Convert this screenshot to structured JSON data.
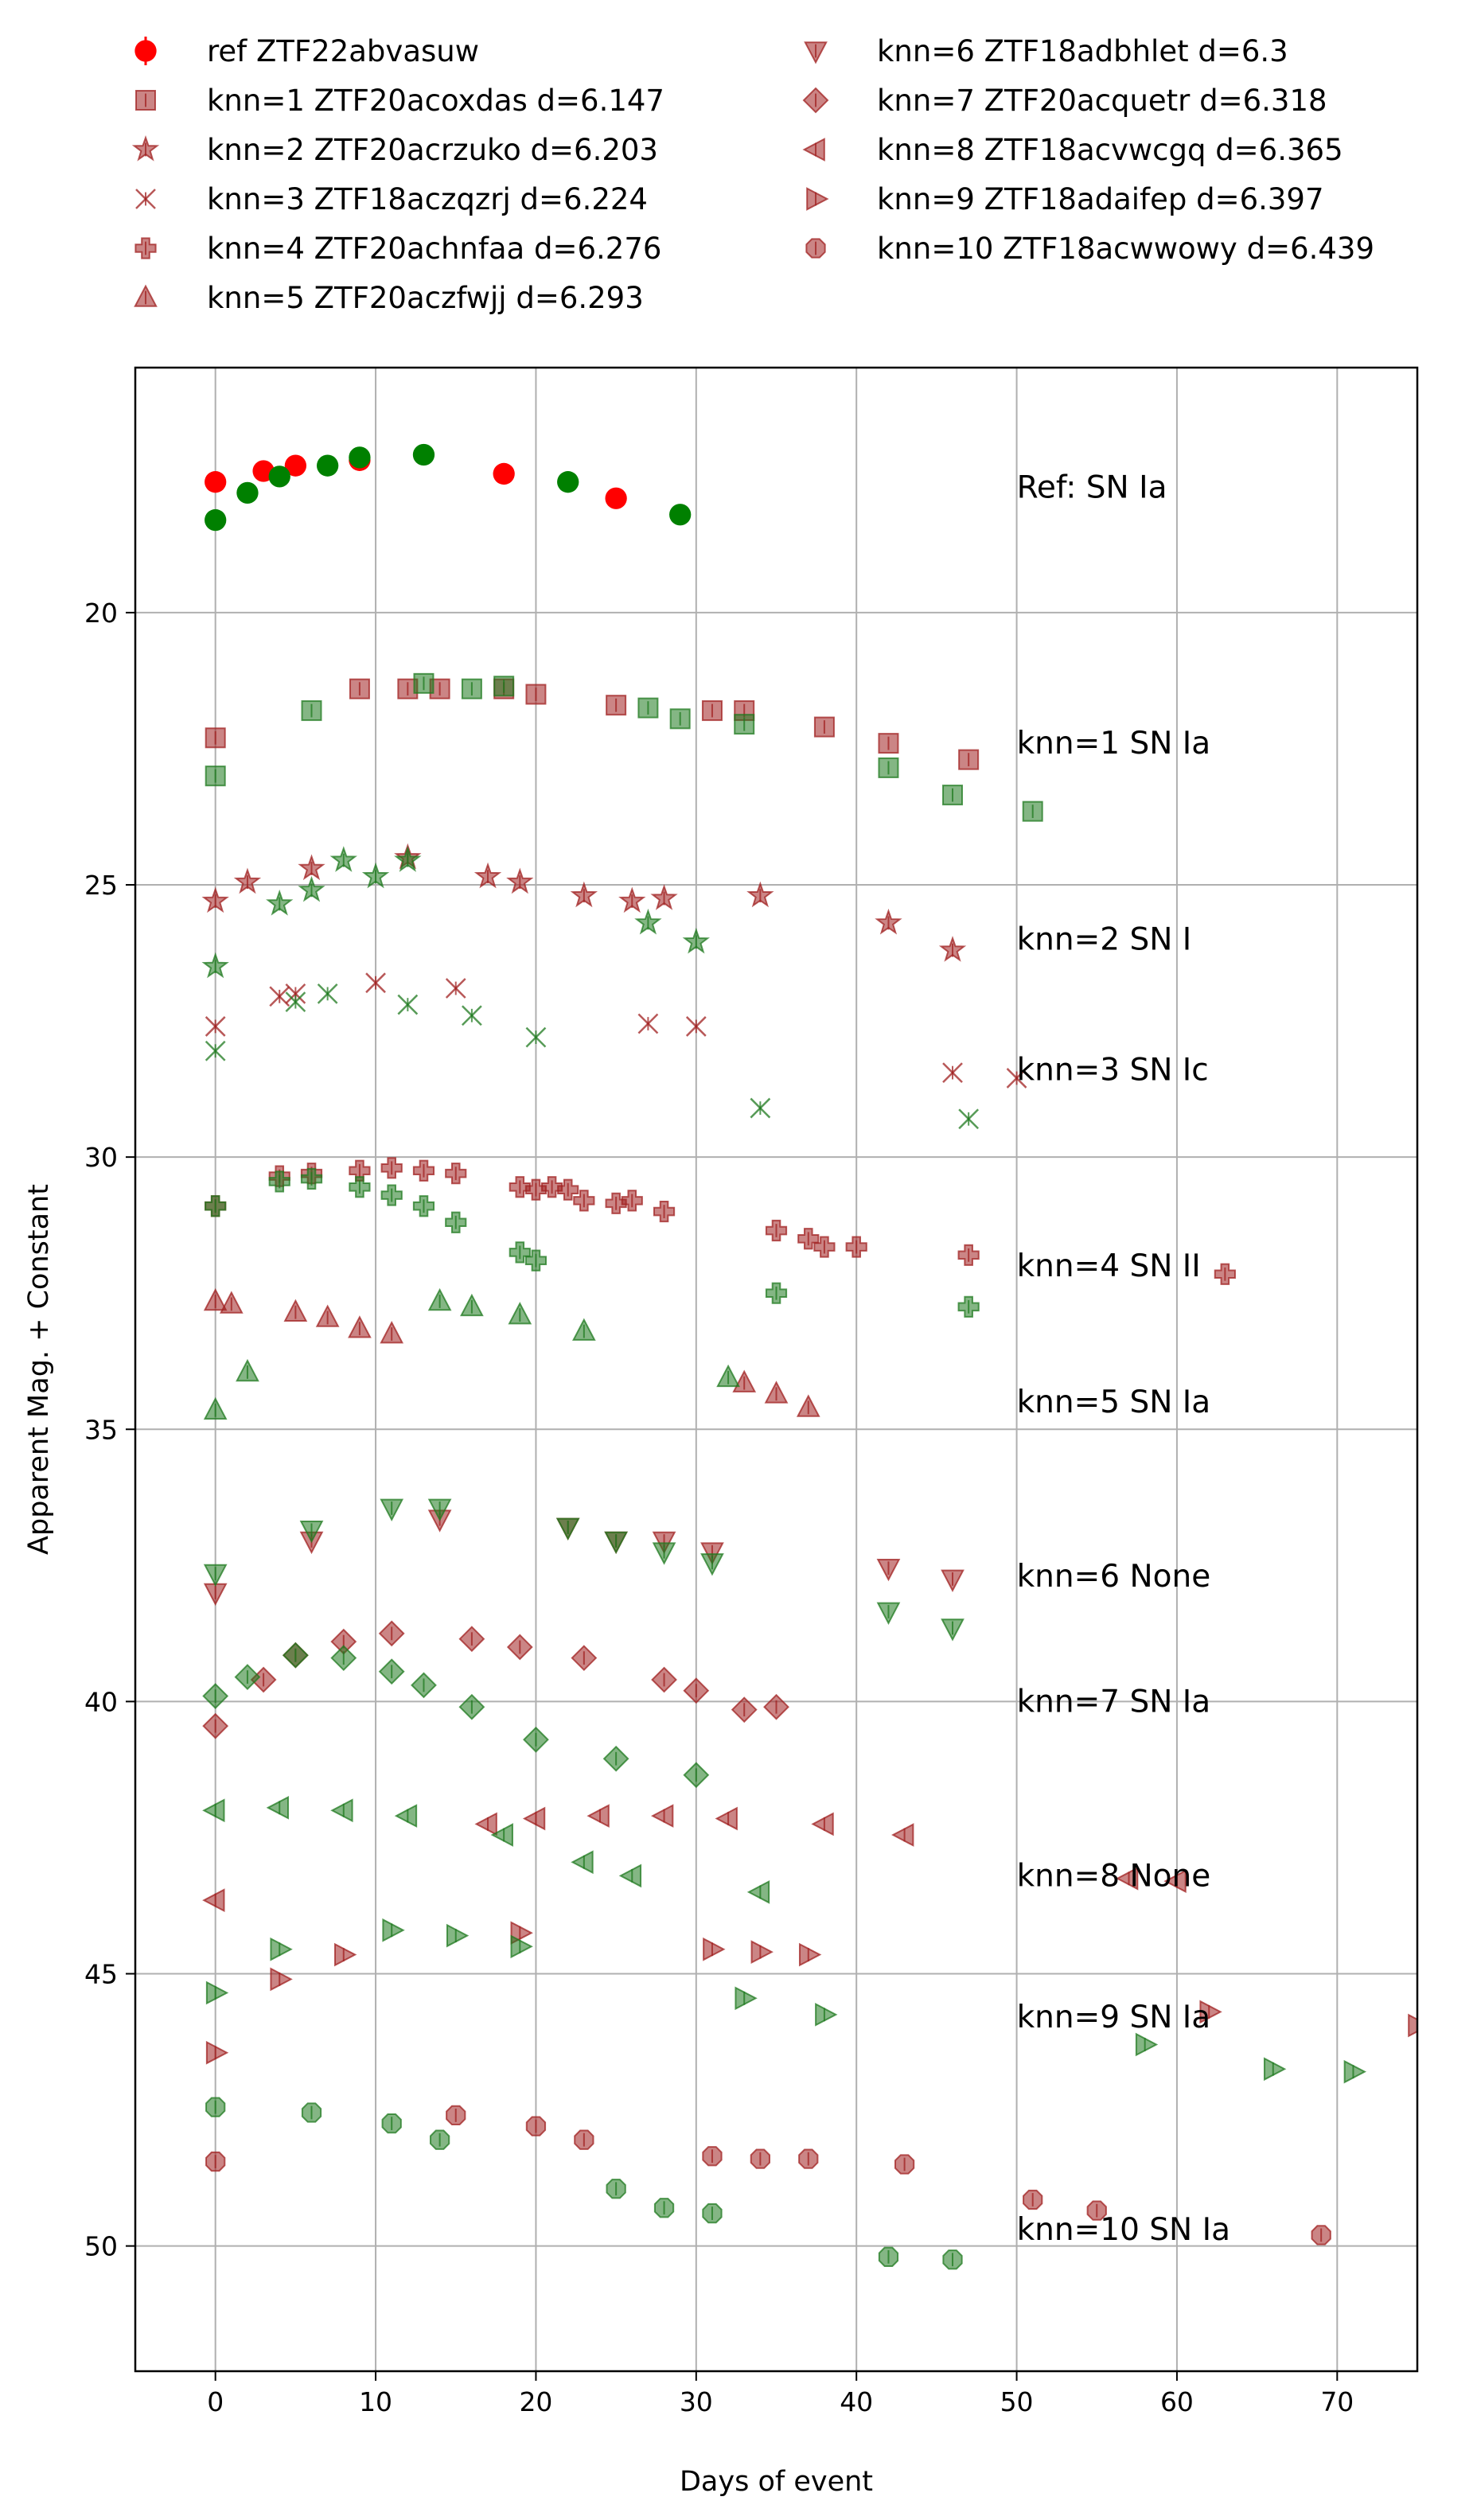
{
  "chart_data": {
    "type": "scatter",
    "xlabel": "Days of event",
    "ylabel": "Apparent Mag. + Constant",
    "xlim": [
      -5,
      75
    ],
    "ylim": [
      52.3,
      15.5
    ],
    "y_inverted": true,
    "xticks": [
      0,
      10,
      20,
      30,
      40,
      50,
      60,
      70
    ],
    "yticks": [
      20,
      25,
      30,
      35,
      40,
      45,
      50
    ],
    "grid": true,
    "legend": {
      "placement": "above plot",
      "columns": 2
    },
    "band_colors": {
      "red": "#a02020",
      "green": "#1f7a1f",
      "ref_red": "#ff0000",
      "ref_green": "#008000"
    },
    "series": [
      {
        "name": "ref ZTF22abvasuw",
        "marker": "circle",
        "label": "Ref: SN Ia",
        "label_y": 17.7,
        "red": [
          [
            0,
            17.6
          ],
          [
            3,
            17.4
          ],
          [
            5,
            17.3
          ],
          [
            9,
            17.2
          ],
          [
            18,
            17.45
          ],
          [
            25,
            17.9
          ]
        ],
        "green": [
          [
            0,
            18.3
          ],
          [
            2,
            17.8
          ],
          [
            4,
            17.5
          ],
          [
            7,
            17.3
          ],
          [
            9,
            17.15
          ],
          [
            13,
            17.1
          ],
          [
            22,
            17.6
          ],
          [
            29,
            18.2
          ]
        ]
      },
      {
        "name": "knn=1 ZTF20acoxdas d=6.147",
        "marker": "square",
        "label": "knn=1 SN Ia",
        "label_y": 22.4,
        "red": [
          [
            0,
            22.3
          ],
          [
            9,
            21.4
          ],
          [
            12,
            21.4
          ],
          [
            14,
            21.4
          ],
          [
            18,
            21.4
          ],
          [
            20,
            21.5
          ],
          [
            25,
            21.7
          ],
          [
            31,
            21.8
          ],
          [
            33,
            21.8
          ],
          [
            38,
            22.1
          ],
          [
            42,
            22.4
          ],
          [
            47,
            22.7
          ]
        ],
        "green": [
          [
            0,
            23.0
          ],
          [
            6,
            21.8
          ],
          [
            13,
            21.3
          ],
          [
            16,
            21.4
          ],
          [
            18,
            21.35
          ],
          [
            27,
            21.75
          ],
          [
            29,
            21.95
          ],
          [
            33,
            22.05
          ],
          [
            42,
            22.85
          ],
          [
            46,
            23.35
          ],
          [
            51,
            23.65
          ]
        ]
      },
      {
        "name": "knn=2 ZTF20acrzuko d=6.203",
        "marker": "star",
        "label": "knn=2 SN I",
        "label_y": 26.0,
        "red": [
          [
            0,
            25.3
          ],
          [
            2,
            24.95
          ],
          [
            6,
            24.7
          ],
          [
            12,
            24.5
          ],
          [
            17,
            24.85
          ],
          [
            19,
            24.95
          ],
          [
            23,
            25.2
          ],
          [
            26,
            25.3
          ],
          [
            28,
            25.25
          ],
          [
            34,
            25.2
          ],
          [
            42,
            25.7
          ],
          [
            46,
            26.2
          ]
        ],
        "green": [
          [
            0,
            26.5
          ],
          [
            4,
            25.35
          ],
          [
            6,
            25.1
          ],
          [
            8,
            24.55
          ],
          [
            10,
            24.85
          ],
          [
            12,
            24.55
          ],
          [
            27,
            25.7
          ],
          [
            30,
            26.05
          ]
        ]
      },
      {
        "name": "knn=3 ZTF18aczqzrj d=6.224",
        "marker": "x",
        "label": "knn=3 SN Ic",
        "label_y": 28.4,
        "red": [
          [
            0,
            27.6
          ],
          [
            4,
            27.05
          ],
          [
            5,
            27.0
          ],
          [
            10,
            26.8
          ],
          [
            15,
            26.9
          ],
          [
            27,
            27.55
          ],
          [
            30,
            27.6
          ],
          [
            46,
            28.45
          ],
          [
            50,
            28.55
          ]
        ],
        "green": [
          [
            0,
            28.05
          ],
          [
            5,
            27.15
          ],
          [
            7,
            27.0
          ],
          [
            12,
            27.2
          ],
          [
            16,
            27.4
          ],
          [
            20,
            27.8
          ],
          [
            34,
            29.1
          ],
          [
            47,
            29.3
          ]
        ]
      },
      {
        "name": "knn=4 ZTF20achnfaa d=6.276",
        "marker": "plus",
        "label": "knn=4 SN II",
        "label_y": 32.0,
        "red": [
          [
            0,
            30.9
          ],
          [
            4,
            30.35
          ],
          [
            6,
            30.3
          ],
          [
            9,
            30.25
          ],
          [
            11,
            30.2
          ],
          [
            13,
            30.25
          ],
          [
            15,
            30.3
          ],
          [
            19,
            30.55
          ],
          [
            20,
            30.6
          ],
          [
            21,
            30.55
          ],
          [
            22,
            30.6
          ],
          [
            23,
            30.8
          ],
          [
            25,
            30.85
          ],
          [
            26,
            30.8
          ],
          [
            28,
            31.0
          ],
          [
            35,
            31.35
          ],
          [
            37,
            31.5
          ],
          [
            38,
            31.65
          ],
          [
            40,
            31.65
          ],
          [
            47,
            31.8
          ],
          [
            63,
            32.15
          ]
        ],
        "green": [
          [
            0,
            30.9
          ],
          [
            4,
            30.45
          ],
          [
            6,
            30.4
          ],
          [
            9,
            30.55
          ],
          [
            11,
            30.7
          ],
          [
            13,
            30.9
          ],
          [
            15,
            31.2
          ],
          [
            19,
            31.75
          ],
          [
            20,
            31.9
          ],
          [
            35,
            32.5
          ],
          [
            47,
            32.75
          ]
        ]
      },
      {
        "name": "knn=5 ZTF20aczfwjj d=6.293",
        "marker": "triangle-up",
        "label": "knn=5 SN Ia",
        "label_y": 34.5,
        "red": [
          [
            0,
            32.65
          ],
          [
            1,
            32.7
          ],
          [
            5,
            32.85
          ],
          [
            7,
            32.95
          ],
          [
            9,
            33.15
          ],
          [
            11,
            33.25
          ],
          [
            33,
            34.15
          ],
          [
            35,
            34.35
          ],
          [
            37,
            34.6
          ]
        ],
        "green": [
          [
            0,
            34.65
          ],
          [
            2,
            33.95
          ],
          [
            14,
            32.65
          ],
          [
            16,
            32.75
          ],
          [
            19,
            32.9
          ],
          [
            23,
            33.2
          ],
          [
            32,
            34.05
          ]
        ]
      },
      {
        "name": "knn=6 ZTF18adbhlet d=6.3",
        "marker": "triangle-down",
        "label": "knn=6 None",
        "label_y": 37.7,
        "red": [
          [
            0,
            38.0
          ],
          [
            6,
            37.05
          ],
          [
            14,
            36.65
          ],
          [
            22,
            36.8
          ],
          [
            25,
            37.05
          ],
          [
            28,
            37.05
          ],
          [
            31,
            37.25
          ],
          [
            42,
            37.55
          ],
          [
            46,
            37.75
          ]
        ],
        "green": [
          [
            0,
            37.65
          ],
          [
            6,
            36.85
          ],
          [
            11,
            36.45
          ],
          [
            14,
            36.45
          ],
          [
            22,
            36.8
          ],
          [
            25,
            37.05
          ],
          [
            28,
            37.25
          ],
          [
            31,
            37.45
          ],
          [
            42,
            38.35
          ],
          [
            46,
            38.65
          ]
        ]
      },
      {
        "name": "knn=7 ZTF20acquetr d=6.318",
        "marker": "diamond",
        "label": "knn=7 SN Ia",
        "label_y": 40.0,
        "red": [
          [
            0,
            40.45
          ],
          [
            3,
            39.6
          ],
          [
            5,
            39.15
          ],
          [
            8,
            38.9
          ],
          [
            11,
            38.75
          ],
          [
            16,
            38.85
          ],
          [
            19,
            39.0
          ],
          [
            23,
            39.2
          ],
          [
            28,
            39.6
          ],
          [
            30,
            39.8
          ],
          [
            33,
            40.15
          ],
          [
            35,
            40.1
          ]
        ],
        "green": [
          [
            0,
            39.9
          ],
          [
            2,
            39.55
          ],
          [
            5,
            39.15
          ],
          [
            8,
            39.2
          ],
          [
            11,
            39.45
          ],
          [
            13,
            39.7
          ],
          [
            16,
            40.1
          ],
          [
            20,
            40.7
          ],
          [
            25,
            41.05
          ],
          [
            30,
            41.35
          ]
        ]
      },
      {
        "name": "knn=8 ZTF18acvwcgq d=6.365",
        "marker": "triangle-left",
        "label": "knn=8 None",
        "label_y": 43.2,
        "red": [
          [
            0,
            43.65
          ],
          [
            17,
            42.25
          ],
          [
            20,
            42.15
          ],
          [
            24,
            42.1
          ],
          [
            28,
            42.1
          ],
          [
            32,
            42.15
          ],
          [
            38,
            42.25
          ],
          [
            43,
            42.45
          ],
          [
            57,
            43.25
          ],
          [
            60,
            43.3
          ]
        ],
        "green": [
          [
            0,
            42.0
          ],
          [
            4,
            41.95
          ],
          [
            8,
            42.0
          ],
          [
            12,
            42.1
          ],
          [
            18,
            42.45
          ],
          [
            23,
            42.95
          ],
          [
            26,
            43.2
          ],
          [
            34,
            43.5
          ]
        ]
      },
      {
        "name": "knn=9 ZTF18adaifep d=6.397",
        "marker": "triangle-right",
        "label": "knn=9 SN Ia",
        "label_y": 45.8,
        "red": [
          [
            0,
            46.45
          ],
          [
            4,
            45.1
          ],
          [
            8,
            44.65
          ],
          [
            19,
            44.25
          ],
          [
            31,
            44.55
          ],
          [
            34,
            44.6
          ],
          [
            37,
            44.65
          ],
          [
            62,
            45.7
          ],
          [
            75,
            45.95
          ]
        ],
        "green": [
          [
            0,
            45.35
          ],
          [
            4,
            44.55
          ],
          [
            11,
            44.2
          ],
          [
            15,
            44.3
          ],
          [
            19,
            44.5
          ],
          [
            33,
            45.45
          ],
          [
            38,
            45.75
          ],
          [
            58,
            46.3
          ],
          [
            66,
            46.75
          ],
          [
            71,
            46.8
          ]
        ]
      },
      {
        "name": "knn=10 ZTF18acwwowy d=6.439",
        "marker": "octagon",
        "label": "knn=10 SN Ia",
        "label_y": 49.7,
        "red": [
          [
            0,
            48.45
          ],
          [
            15,
            47.6
          ],
          [
            20,
            47.8
          ],
          [
            23,
            48.05
          ],
          [
            31,
            48.35
          ],
          [
            34,
            48.4
          ],
          [
            37,
            48.4
          ],
          [
            43,
            48.5
          ],
          [
            51,
            49.15
          ],
          [
            55,
            49.35
          ],
          [
            69,
            49.8
          ]
        ],
        "green": [
          [
            0,
            47.45
          ],
          [
            6,
            47.55
          ],
          [
            11,
            47.75
          ],
          [
            14,
            48.05
          ],
          [
            25,
            48.95
          ],
          [
            28,
            49.3
          ],
          [
            31,
            49.4
          ],
          [
            42,
            50.2
          ],
          [
            46,
            50.25
          ]
        ]
      }
    ]
  }
}
